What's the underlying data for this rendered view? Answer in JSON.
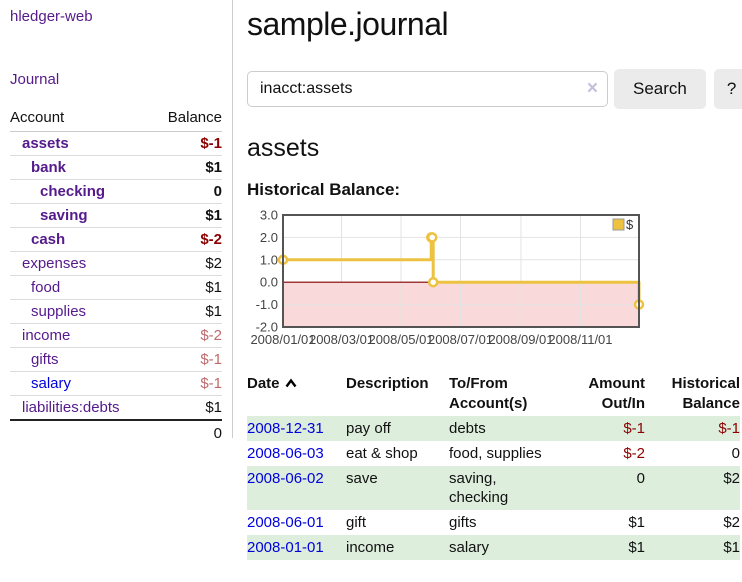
{
  "colors": {
    "link_purple": "#551A8B",
    "link_blue": "#0000DD",
    "negative_dark": "#8B0000",
    "negative_light": "#BF6A6A",
    "row_green": "#DDEEDD",
    "series_gold": "#EDC240"
  },
  "app": {
    "brand": "hledger-web",
    "nav_journal": "Journal"
  },
  "sidebar": {
    "header": {
      "account": "Account",
      "balance": "Balance"
    },
    "accounts": [
      {
        "name": "assets",
        "depth": 1,
        "balance": "$-1",
        "bold": true,
        "negative": true,
        "blue": false
      },
      {
        "name": "bank",
        "depth": 2,
        "balance": "$1",
        "bold": true,
        "negative": false,
        "blue": false
      },
      {
        "name": "checking",
        "depth": 3,
        "balance": "0",
        "bold": true,
        "negative": false,
        "blue": false
      },
      {
        "name": "saving",
        "depth": 3,
        "balance": "$1",
        "bold": true,
        "negative": false,
        "blue": false
      },
      {
        "name": "cash",
        "depth": 2,
        "balance": "$-2",
        "bold": true,
        "negative": true,
        "blue": false
      },
      {
        "name": "expenses",
        "depth": 1,
        "balance": "$2",
        "bold": false,
        "negative": false,
        "blue": false
      },
      {
        "name": "food",
        "depth": 2,
        "balance": "$1",
        "bold": false,
        "negative": false,
        "blue": false
      },
      {
        "name": "supplies",
        "depth": 2,
        "balance": "$1",
        "bold": false,
        "negative": false,
        "blue": false
      },
      {
        "name": "income",
        "depth": 1,
        "balance": "$-2",
        "bold": false,
        "negative": true,
        "blue": false
      },
      {
        "name": "gifts",
        "depth": 2,
        "balance": "$-1",
        "bold": false,
        "negative": true,
        "blue": false
      },
      {
        "name": "salary",
        "depth": 2,
        "balance": "$-1",
        "bold": false,
        "negative": true,
        "blue": true
      },
      {
        "name": "liabilities:debts",
        "depth": 1,
        "balance": "$1",
        "bold": false,
        "negative": false,
        "blue": false
      }
    ],
    "total": "0"
  },
  "header": {
    "title": "sample.journal"
  },
  "search": {
    "value": "inacct:assets",
    "clear_label": "×",
    "button": "Search",
    "help": "?"
  },
  "account_page": {
    "heading": "assets",
    "chart_label": "Historical Balance:"
  },
  "chart_data": {
    "type": "line",
    "title": "Historical Balance",
    "step": true,
    "series": [
      {
        "name": "$",
        "color": "#EDC240",
        "points": [
          {
            "x": "2008-01-01",
            "y": 1
          },
          {
            "x": "2008-06-01",
            "y": 2
          },
          {
            "x": "2008-06-02",
            "y": 2
          },
          {
            "x": "2008-06-03",
            "y": 0
          },
          {
            "x": "2008-12-31",
            "y": -1
          }
        ]
      }
    ],
    "x_ticks": [
      "2008/01/01",
      "2008/03/01",
      "2008/05/01",
      "2008/07/01",
      "2008/09/01",
      "2008/11/01"
    ],
    "y_ticks": [
      3.0,
      2.0,
      1.0,
      0.0,
      -1.0,
      -2.0
    ],
    "ylim": [
      -2,
      3
    ],
    "x_range": [
      "2008-01-01",
      "2008-12-31"
    ],
    "grid": true,
    "legend": "$",
    "legend_position": "top-right",
    "negative_region_color": "#F9D9D9",
    "zero_line_color": "#800000",
    "grid_color": "#E3E3E3",
    "border_color": "#545454"
  },
  "register": {
    "columns": {
      "date": "Date",
      "description": "Description",
      "accounts": "To/From Account(s)",
      "amount": "Amount Out/In",
      "balance": "Historical Balance"
    },
    "rows": [
      {
        "date": "2008-12-31",
        "description": "pay off",
        "accounts": "debts",
        "amount": "$-1",
        "amount_negative": true,
        "balance": "$-1",
        "balance_negative": true
      },
      {
        "date": "2008-06-03",
        "description": "eat & shop",
        "accounts": "food, supplies",
        "amount": "$-2",
        "amount_negative": true,
        "balance": "0",
        "balance_negative": false
      },
      {
        "date": "2008-06-02",
        "description": "save",
        "accounts": "saving, checking",
        "amount": "0",
        "amount_negative": false,
        "balance": "$2",
        "balance_negative": false
      },
      {
        "date": "2008-06-01",
        "description": "gift",
        "accounts": "gifts",
        "amount": "$1",
        "amount_negative": false,
        "balance": "$2",
        "balance_negative": false
      },
      {
        "date": "2008-01-01",
        "description": "income",
        "accounts": "salary",
        "amount": "$1",
        "amount_negative": false,
        "balance": "$1",
        "balance_negative": false
      }
    ]
  }
}
